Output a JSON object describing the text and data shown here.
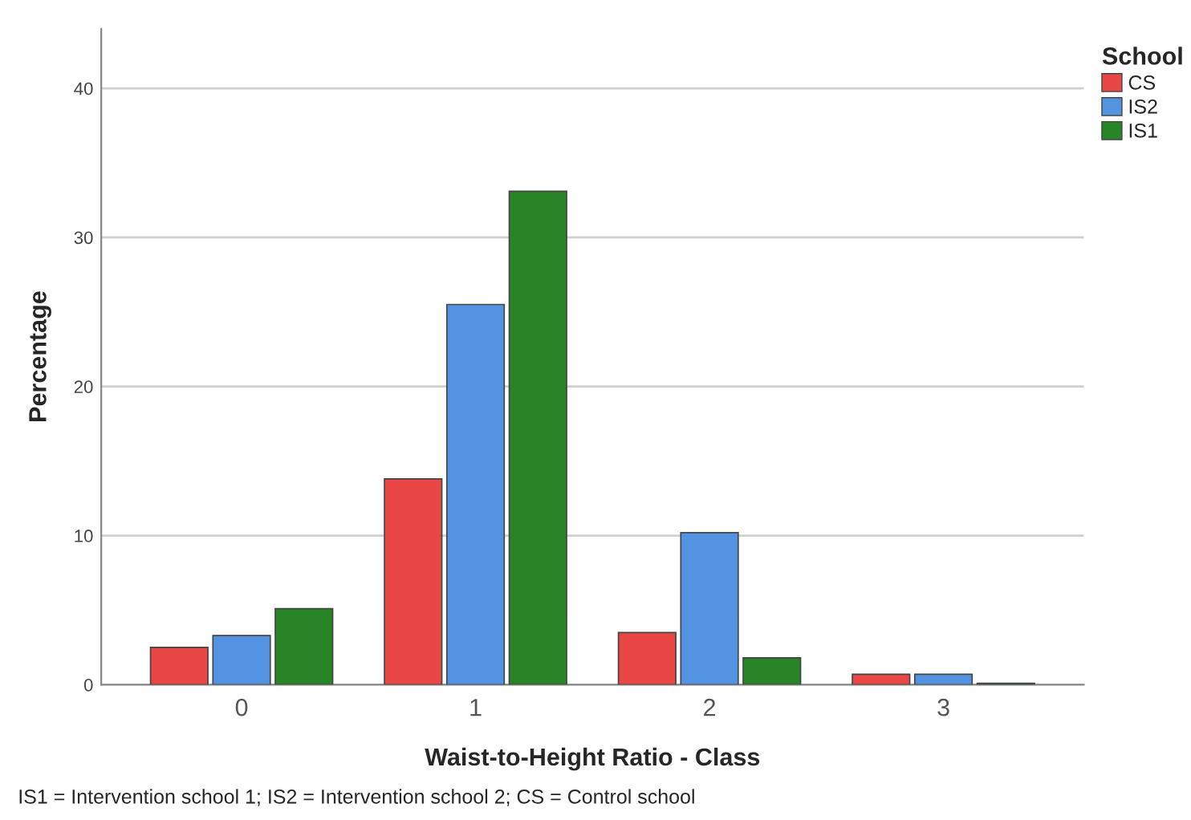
{
  "chart_data": {
    "type": "bar",
    "xlabel": "Waist-to-Height Ratio - Class",
    "ylabel": "Percentage",
    "legend_title": "School",
    "categories": [
      "0",
      "1",
      "2",
      "3"
    ],
    "series": [
      {
        "name": "CS",
        "color": "#e94646",
        "values": [
          2.5,
          13.8,
          3.5,
          0.7
        ]
      },
      {
        "name": "IS2",
        "color": "#5294e2",
        "values": [
          3.3,
          25.5,
          10.2,
          0.7
        ]
      },
      {
        "name": "IS1",
        "color": "#288527",
        "values": [
          5.1,
          33.1,
          1.8,
          0.1
        ]
      }
    ],
    "ylim": [
      0,
      44
    ],
    "yticks": [
      0,
      10,
      20,
      30,
      40
    ],
    "grid": "y",
    "legend": "top right",
    "annotations": [
      "IS1 = Intervention school 1; IS2 = Intervention school 2; CS = Control school"
    ]
  }
}
